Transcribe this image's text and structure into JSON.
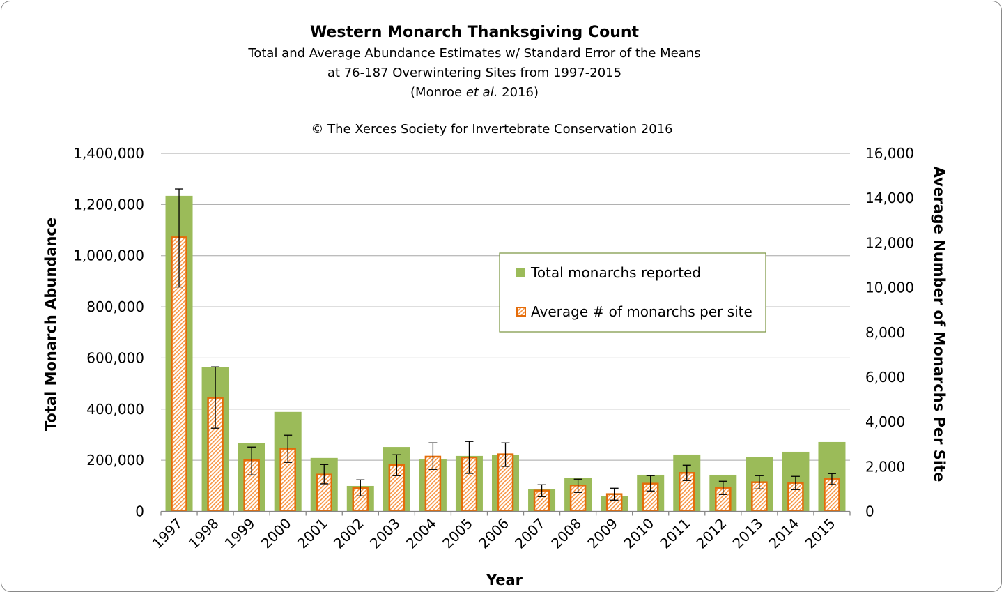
{
  "chart_data": {
    "type": "bar",
    "title": "Western Monarch Thanksgiving Count",
    "subtitle_lines": [
      "Total and Average Abundance Estimates w/ Standard Error of the Means",
      "at 76-187 Overwintering Sites from 1997-2015"
    ],
    "citation": {
      "prefix": "(Monroe ",
      "italic": "et al.",
      "suffix": " 2016)"
    },
    "copyright": "© The Xerces Society for Invertebrate Conservation 2016",
    "xlabel": "Year",
    "ylabel": "Total Monarch Abundance",
    "y2label": "Average Number of Monarchs Per Site",
    "ylim": [
      0,
      1400000
    ],
    "y2lim": [
      0,
      16000
    ],
    "yticks": [
      "0",
      "200,000",
      "400,000",
      "600,000",
      "800,000",
      "1,000,000",
      "1,200,000",
      "1,400,000"
    ],
    "y2ticks": [
      "0",
      "2,000",
      "4,000",
      "6,000",
      "8,000",
      "10,000",
      "12,000",
      "14,000",
      "16,000"
    ],
    "grid": true,
    "legend_placement": "upper-right-center",
    "categories": [
      "1997",
      "1998",
      "1999",
      "2000",
      "2001",
      "2002",
      "2003",
      "2004",
      "2005",
      "2006",
      "2007",
      "2008",
      "2009",
      "2010",
      "2011",
      "2012",
      "2013",
      "2014",
      "2015"
    ],
    "series": [
      {
        "name": "Total monarchs reported",
        "axis": "left",
        "color": "#9BBB59",
        "values": [
          1234000,
          563000,
          266000,
          389000,
          209000,
          99600,
          252000,
          203000,
          217000,
          219600,
          86000,
          129600,
          58600,
          143200,
          222300,
          143200,
          211400,
          233200,
          271400
        ]
      },
      {
        "name": "Average # of monarchs per site",
        "axis": "right",
        "color": "#E46C0A",
        "pattern": "hatched",
        "values": [
          12250,
          5075,
          2283,
          2800,
          1646,
          1045,
          2064,
          2448,
          2407,
          2551,
          929,
          1160,
          773,
          1241,
          1721,
          1054,
          1303,
          1272,
          1459
        ],
        "error_low": [
          10030,
          3717,
          1628,
          2189,
          1232,
          692,
          1597,
          1877,
          1700,
          2011,
          661,
          848,
          505,
          911,
          1378,
          755,
          1004,
          973,
          1200
        ],
        "error_high": [
          14410,
          6460,
          2875,
          3405,
          2095,
          1410,
          2532,
          3062,
          3124,
          3062,
          1191,
          1441,
          1035,
          1597,
          2064,
          1347,
          1597,
          1566,
          1690
        ]
      }
    ]
  }
}
